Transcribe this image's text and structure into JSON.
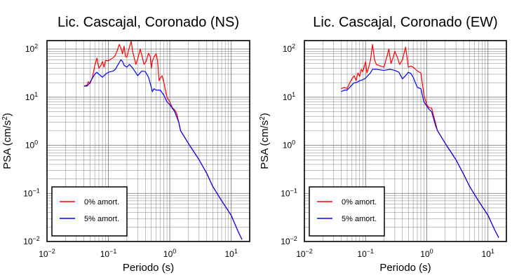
{
  "chart_data": [
    {
      "type": "line",
      "title": "Lic. Cascajal, Coronado (NS)",
      "xlabel": "Periodo (s)",
      "ylabel": "PSA (cm/s2)",
      "xscale": "log",
      "yscale": "log",
      "xlim": [
        0.01,
        20
      ],
      "ylim": [
        0.01,
        150
      ],
      "x_ticks": [
        {
          "base": "10",
          "exp": "−2"
        },
        {
          "base": "10",
          "exp": "−1"
        },
        {
          "base": "10",
          "exp": "0"
        },
        {
          "base": "10",
          "exp": "1"
        }
      ],
      "y_ticks": [
        {
          "base": "10",
          "exp": "−2"
        },
        {
          "base": "10",
          "exp": "−1"
        },
        {
          "base": "10",
          "exp": "0"
        },
        {
          "base": "10",
          "exp": "1"
        },
        {
          "base": "10",
          "exp": "2"
        }
      ],
      "grid": true,
      "legend_position": "bottom-left",
      "series": [
        {
          "name": "0% amort.",
          "color": "#ff0000",
          "points": [
            [
              0.04,
              17
            ],
            [
              0.045,
              18
            ],
            [
              0.047,
              21
            ],
            [
              0.05,
              19
            ],
            [
              0.055,
              26
            ],
            [
              0.06,
              45
            ],
            [
              0.065,
              65
            ],
            [
              0.07,
              40
            ],
            [
              0.075,
              45
            ],
            [
              0.08,
              55
            ],
            [
              0.085,
              42
            ],
            [
              0.09,
              58
            ],
            [
              0.1,
              57
            ],
            [
              0.11,
              62
            ],
            [
              0.12,
              66
            ],
            [
              0.13,
              75
            ],
            [
              0.14,
              95
            ],
            [
              0.15,
              125
            ],
            [
              0.16,
              105
            ],
            [
              0.17,
              80
            ],
            [
              0.18,
              115
            ],
            [
              0.19,
              70
            ],
            [
              0.2,
              68
            ],
            [
              0.22,
              110
            ],
            [
              0.235,
              145
            ],
            [
              0.25,
              85
            ],
            [
              0.28,
              48
            ],
            [
              0.3,
              62
            ],
            [
              0.33,
              100
            ],
            [
              0.35,
              75
            ],
            [
              0.38,
              48
            ],
            [
              0.41,
              55
            ],
            [
              0.45,
              82
            ],
            [
              0.48,
              70
            ],
            [
              0.5,
              40
            ],
            [
              0.52,
              55
            ],
            [
              0.55,
              68
            ],
            [
              0.6,
              80
            ],
            [
              0.63,
              58
            ],
            [
              0.67,
              22
            ],
            [
              0.7,
              25
            ],
            [
              0.75,
              28
            ],
            [
              0.8,
              20
            ],
            [
              0.9,
              10
            ],
            [
              1.0,
              8
            ],
            [
              1.1,
              6
            ],
            [
              1.2,
              5.5
            ],
            [
              1.3,
              4.5
            ],
            [
              1.4,
              3
            ],
            [
              1.5,
              2
            ],
            [
              2,
              1.1
            ],
            [
              3,
              0.5
            ],
            [
              4,
              0.26
            ],
            [
              5,
              0.14
            ],
            [
              7,
              0.07
            ],
            [
              10,
              0.035
            ],
            [
              13,
              0.016
            ],
            [
              15,
              0.011
            ]
          ]
        },
        {
          "name": "5% amort.",
          "color": "#0000ff",
          "points": [
            [
              0.04,
              17
            ],
            [
              0.045,
              17
            ],
            [
              0.05,
              20
            ],
            [
              0.055,
              25
            ],
            [
              0.06,
              30
            ],
            [
              0.065,
              33
            ],
            [
              0.07,
              30
            ],
            [
              0.08,
              26
            ],
            [
              0.09,
              30
            ],
            [
              0.1,
              33
            ],
            [
              0.12,
              35
            ],
            [
              0.13,
              38
            ],
            [
              0.14,
              45
            ],
            [
              0.15,
              52
            ],
            [
              0.16,
              60
            ],
            [
              0.17,
              55
            ],
            [
              0.18,
              46
            ],
            [
              0.2,
              42
            ],
            [
              0.22,
              48
            ],
            [
              0.25,
              40
            ],
            [
              0.3,
              28
            ],
            [
              0.35,
              35
            ],
            [
              0.4,
              34
            ],
            [
              0.45,
              26
            ],
            [
              0.5,
              16
            ],
            [
              0.52,
              13
            ],
            [
              0.55,
              15
            ],
            [
              0.6,
              14
            ],
            [
              0.7,
              14
            ],
            [
              0.8,
              11
            ],
            [
              0.9,
              8
            ],
            [
              1.0,
              7
            ],
            [
              1.2,
              5
            ],
            [
              1.4,
              3
            ],
            [
              1.5,
              2
            ],
            [
              2,
              1.1
            ],
            [
              3,
              0.5
            ],
            [
              4,
              0.26
            ],
            [
              5,
              0.14
            ],
            [
              7,
              0.07
            ],
            [
              10,
              0.035
            ],
            [
              13,
              0.016
            ],
            [
              15,
              0.011
            ]
          ]
        }
      ]
    },
    {
      "type": "line",
      "title": "Lic. Cascajal, Coronado (EW)",
      "xlabel": "Periodo (s)",
      "ylabel": "PSA (cm/s2)",
      "xscale": "log",
      "yscale": "log",
      "xlim": [
        0.01,
        20
      ],
      "ylim": [
        0.01,
        150
      ],
      "x_ticks": [
        {
          "base": "10",
          "exp": "−2"
        },
        {
          "base": "10",
          "exp": "−1"
        },
        {
          "base": "10",
          "exp": "0"
        },
        {
          "base": "10",
          "exp": "1"
        }
      ],
      "y_ticks": [
        {
          "base": "10",
          "exp": "−2"
        },
        {
          "base": "10",
          "exp": "−1"
        },
        {
          "base": "10",
          "exp": "0"
        },
        {
          "base": "10",
          "exp": "1"
        },
        {
          "base": "10",
          "exp": "2"
        }
      ],
      "grid": true,
      "legend_position": "bottom-left",
      "series": [
        {
          "name": "0% amort.",
          "color": "#ff0000",
          "points": [
            [
              0.04,
              15
            ],
            [
              0.045,
              16
            ],
            [
              0.05,
              15
            ],
            [
              0.055,
              20
            ],
            [
              0.06,
              24
            ],
            [
              0.065,
              28
            ],
            [
              0.07,
              22
            ],
            [
              0.075,
              32
            ],
            [
              0.08,
              27
            ],
            [
              0.085,
              38
            ],
            [
              0.09,
              34
            ],
            [
              0.1,
              55
            ],
            [
              0.105,
              32
            ],
            [
              0.11,
              38
            ],
            [
              0.12,
              58
            ],
            [
              0.13,
              125
            ],
            [
              0.14,
              60
            ],
            [
              0.15,
              48
            ],
            [
              0.17,
              45
            ],
            [
              0.2,
              42
            ],
            [
              0.22,
              65
            ],
            [
              0.24,
              100
            ],
            [
              0.26,
              50
            ],
            [
              0.28,
              65
            ],
            [
              0.3,
              90
            ],
            [
              0.33,
              68
            ],
            [
              0.36,
              48
            ],
            [
              0.4,
              60
            ],
            [
              0.45,
              110
            ],
            [
              0.5,
              42
            ],
            [
              0.55,
              44
            ],
            [
              0.6,
              42
            ],
            [
              0.7,
              35
            ],
            [
              0.8,
              32
            ],
            [
              0.9,
              11
            ],
            [
              1.0,
              7
            ],
            [
              1.1,
              6
            ],
            [
              1.2,
              6
            ],
            [
              1.3,
              4
            ],
            [
              1.4,
              2.8
            ],
            [
              1.5,
              2
            ],
            [
              2,
              1.1
            ],
            [
              3,
              0.5
            ],
            [
              4,
              0.25
            ],
            [
              5,
              0.14
            ],
            [
              7,
              0.07
            ],
            [
              10,
              0.035
            ],
            [
              13,
              0.017
            ],
            [
              15,
              0.012
            ]
          ]
        },
        {
          "name": "5% amort.",
          "color": "#0000ff",
          "points": [
            [
              0.04,
              13
            ],
            [
              0.045,
              14
            ],
            [
              0.05,
              14
            ],
            [
              0.055,
              16
            ],
            [
              0.06,
              18
            ],
            [
              0.065,
              20
            ],
            [
              0.07,
              20
            ],
            [
              0.08,
              22
            ],
            [
              0.09,
              23
            ],
            [
              0.1,
              25
            ],
            [
              0.12,
              32
            ],
            [
              0.13,
              38
            ],
            [
              0.15,
              38
            ],
            [
              0.2,
              36
            ],
            [
              0.25,
              38
            ],
            [
              0.3,
              36
            ],
            [
              0.35,
              33
            ],
            [
              0.4,
              24
            ],
            [
              0.45,
              28
            ],
            [
              0.5,
              33
            ],
            [
              0.55,
              31
            ],
            [
              0.6,
              26
            ],
            [
              0.7,
              16
            ],
            [
              0.8,
              15
            ],
            [
              0.9,
              8
            ],
            [
              1.0,
              6.5
            ],
            [
              1.1,
              5.5
            ],
            [
              1.2,
              5
            ],
            [
              1.3,
              3.5
            ],
            [
              1.4,
              2.5
            ],
            [
              1.5,
              2
            ],
            [
              2,
              1.1
            ],
            [
              3,
              0.5
            ],
            [
              4,
              0.25
            ],
            [
              5,
              0.14
            ],
            [
              7,
              0.07
            ],
            [
              10,
              0.035
            ],
            [
              13,
              0.017
            ],
            [
              15,
              0.012
            ]
          ]
        }
      ]
    }
  ]
}
